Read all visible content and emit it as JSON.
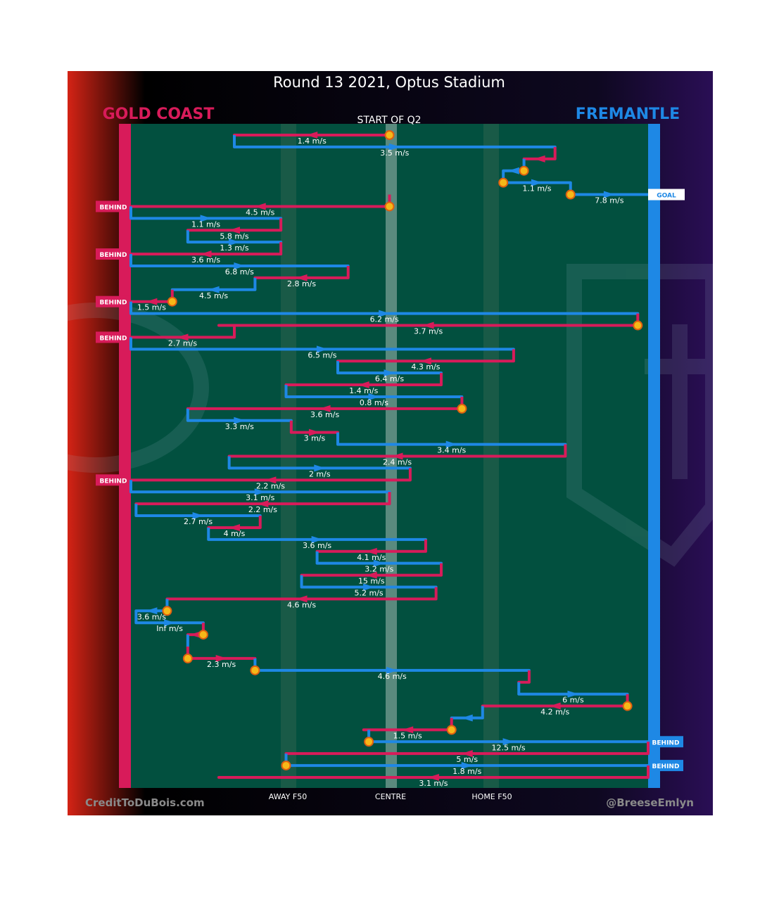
{
  "header": {
    "title": "Round 13 2021, Optus Stadium",
    "team_left": "GOLD COAST",
    "team_right": "FREMANTLE",
    "period_label": "START OF Q2"
  },
  "footer": {
    "credit_left": "CreditToDuBois.com",
    "credit_right": "@BreeseEmlyn"
  },
  "colors": {
    "gold_coast": "#d81b5a",
    "fremantle": "#1e88e5",
    "field": "#02503f",
    "background": "#000000",
    "stoppage_marker": "#f6b818"
  },
  "chart_data": {
    "type": "line",
    "title": "Round 13 2021, Optus Stadium",
    "subtitle": "START OF Q2",
    "x_axis": {
      "ticks": [
        "AWAY F50",
        "CENTRE",
        "HOME F50"
      ],
      "range": "goal line to goal line"
    },
    "legend": [
      "GOLD COAST",
      "FREMANTLE"
    ],
    "chains": [
      {
        "team": "GOLD COAST",
        "speed": "1.4 m/s",
        "start_x": 0.5,
        "end_x": 0.2,
        "stoppage": true
      },
      {
        "team": "FREMANTLE",
        "speed": "3.5 m/s",
        "start_x": 0.2,
        "end_x": 0.82
      },
      {
        "team": "GOLD COAST",
        "speed": "",
        "start_x": 0.82,
        "end_x": 0.76
      },
      {
        "team": "FREMANTLE",
        "speed": "",
        "start_x": 0.76,
        "end_x": 0.72,
        "stoppage": true
      },
      {
        "team": "FREMANTLE",
        "speed": "1.1 m/s",
        "start_x": 0.72,
        "end_x": 0.85,
        "stoppage": true
      },
      {
        "team": "FREMANTLE",
        "speed": "7.8 m/s",
        "start_x": 0.85,
        "end_x": 1.0,
        "stoppage": true,
        "result": "GOAL"
      },
      {
        "team": "GOLD COAST",
        "speed": "4.5 m/s",
        "start_x": 0.5,
        "end_x": 0.0,
        "stoppage": true,
        "result": "BEHIND"
      },
      {
        "team": "FREMANTLE",
        "speed": "1.1 m/s",
        "start_x": 0.0,
        "end_x": 0.29
      },
      {
        "team": "GOLD COAST",
        "speed": "5.8 m/s",
        "start_x": 0.29,
        "end_x": 0.11
      },
      {
        "team": "FREMANTLE",
        "speed": "1.3 m/s",
        "start_x": 0.11,
        "end_x": 0.29
      },
      {
        "team": "GOLD COAST",
        "speed": "3.6 m/s",
        "start_x": 0.29,
        "end_x": 0.0,
        "result": "BEHIND"
      },
      {
        "team": "FREMANTLE",
        "speed": "6.8 m/s",
        "start_x": 0.0,
        "end_x": 0.42
      },
      {
        "team": "GOLD COAST",
        "speed": "2.8 m/s",
        "start_x": 0.42,
        "end_x": 0.24
      },
      {
        "team": "FREMANTLE",
        "speed": "4.5 m/s",
        "start_x": 0.24,
        "end_x": 0.08
      },
      {
        "team": "GOLD COAST",
        "speed": "1.5 m/s",
        "start_x": 0.08,
        "end_x": 0.0,
        "stoppage": true,
        "result": "BEHIND"
      },
      {
        "team": "FREMANTLE",
        "speed": "6.2 m/s",
        "start_x": 0.0,
        "end_x": 0.98
      },
      {
        "team": "GOLD COAST",
        "speed": "3.7 m/s",
        "start_x": 0.98,
        "end_x": 0.17,
        "stoppage": true
      },
      {
        "team": "GOLD COAST",
        "speed": "2.7 m/s",
        "start_x": 0.2,
        "end_x": 0.0,
        "result": "BEHIND"
      },
      {
        "team": "FREMANTLE",
        "speed": "6.5 m/s",
        "start_x": 0.0,
        "end_x": 0.74
      },
      {
        "team": "GOLD COAST",
        "speed": "4.3 m/s",
        "start_x": 0.74,
        "end_x": 0.4
      },
      {
        "team": "FREMANTLE",
        "speed": "6.4 m/s",
        "start_x": 0.4,
        "end_x": 0.6
      },
      {
        "team": "GOLD COAST",
        "speed": "1.4 m/s",
        "start_x": 0.6,
        "end_x": 0.3
      },
      {
        "team": "FREMANTLE",
        "speed": "0.8 m/s",
        "start_x": 0.3,
        "end_x": 0.64
      },
      {
        "team": "GOLD COAST",
        "speed": "3.6 m/s",
        "start_x": 0.64,
        "end_x": 0.11,
        "stoppage": true
      },
      {
        "team": "FREMANTLE",
        "speed": "3.3 m/s",
        "start_x": 0.11,
        "end_x": 0.31
      },
      {
        "team": "GOLD COAST",
        "speed": "3 m/s",
        "start_x": 0.31,
        "end_x": 0.4
      },
      {
        "team": "FREMANTLE",
        "speed": "3.4 m/s",
        "start_x": 0.4,
        "end_x": 0.84
      },
      {
        "team": "GOLD COAST",
        "speed": "2.4 m/s",
        "start_x": 0.84,
        "end_x": 0.19
      },
      {
        "team": "FREMANTLE",
        "speed": "2 m/s",
        "start_x": 0.19,
        "end_x": 0.54
      },
      {
        "team": "GOLD COAST",
        "speed": "2.2 m/s",
        "start_x": 0.54,
        "end_x": 0.0,
        "result": "BEHIND"
      },
      {
        "team": "FREMANTLE",
        "speed": "3.1 m/s",
        "start_x": 0.0,
        "end_x": 0.5
      },
      {
        "team": "GOLD COAST",
        "speed": "2.2 m/s",
        "start_x": 0.5,
        "end_x": 0.01
      },
      {
        "team": "FREMANTLE",
        "speed": "2.7 m/s",
        "start_x": 0.01,
        "end_x": 0.25
      },
      {
        "team": "GOLD COAST",
        "speed": "4 m/s",
        "start_x": 0.25,
        "end_x": 0.15
      },
      {
        "team": "FREMANTLE",
        "speed": "3.6 m/s",
        "start_x": 0.15,
        "end_x": 0.57
      },
      {
        "team": "GOLD COAST",
        "speed": "4.1 m/s",
        "start_x": 0.57,
        "end_x": 0.36
      },
      {
        "team": "FREMANTLE",
        "speed": "3.2 m/s",
        "start_x": 0.36,
        "end_x": 0.6
      },
      {
        "team": "GOLD COAST",
        "speed": "15 m/s",
        "start_x": 0.6,
        "end_x": 0.33
      },
      {
        "team": "FREMANTLE",
        "speed": "5.2 m/s",
        "start_x": 0.33,
        "end_x": 0.59
      },
      {
        "team": "GOLD COAST",
        "speed": "4.6 m/s",
        "start_x": 0.59,
        "end_x": 0.07
      },
      {
        "team": "FREMANTLE",
        "speed": "3.6 m/s",
        "start_x": 0.07,
        "end_x": 0.01,
        "stoppage": true
      },
      {
        "team": "FREMANTLE",
        "speed": "Inf m/s",
        "start_x": 0.01,
        "end_x": 0.14
      },
      {
        "team": "GOLD COAST",
        "speed": "",
        "start_x": 0.14,
        "end_x": 0.11,
        "stoppage": true
      },
      {
        "team": "FREMANTLE",
        "speed": "",
        "start_x": 0.11,
        "end_x": 0.11
      },
      {
        "team": "GOLD COAST",
        "speed": "2.3 m/s",
        "start_x": 0.11,
        "end_x": 0.24,
        "stoppage": true
      },
      {
        "team": "FREMANTLE",
        "speed": "4.6 m/s",
        "start_x": 0.24,
        "end_x": 0.77,
        "stoppage": true
      },
      {
        "team": "GOLD COAST",
        "speed": "",
        "start_x": 0.77,
        "end_x": 0.75
      },
      {
        "team": "FREMANTLE",
        "speed": "6 m/s",
        "start_x": 0.75,
        "end_x": 0.96
      },
      {
        "team": "GOLD COAST",
        "speed": "4.2 m/s",
        "start_x": 0.96,
        "end_x": 0.68,
        "stoppage": true
      },
      {
        "team": "FREMANTLE",
        "speed": "",
        "start_x": 0.68,
        "end_x": 0.62
      },
      {
        "team": "GOLD COAST",
        "speed": "1.5 m/s",
        "start_x": 0.62,
        "end_x": 0.45,
        "stoppage": true
      },
      {
        "team": "FREMANTLE",
        "speed": "12.5 m/s",
        "start_x": 0.46,
        "end_x": 1.0,
        "stoppage": true,
        "result": "BEHIND"
      },
      {
        "team": "GOLD COAST",
        "speed": "5 m/s",
        "start_x": 1.0,
        "end_x": 0.3
      },
      {
        "team": "FREMANTLE",
        "speed": "1.8 m/s",
        "start_x": 0.3,
        "end_x": 1.0,
        "stoppage": true,
        "result": "BEHIND"
      },
      {
        "team": "GOLD COAST",
        "speed": "3.1 m/s",
        "start_x": 1.0,
        "end_x": 0.17
      }
    ]
  }
}
